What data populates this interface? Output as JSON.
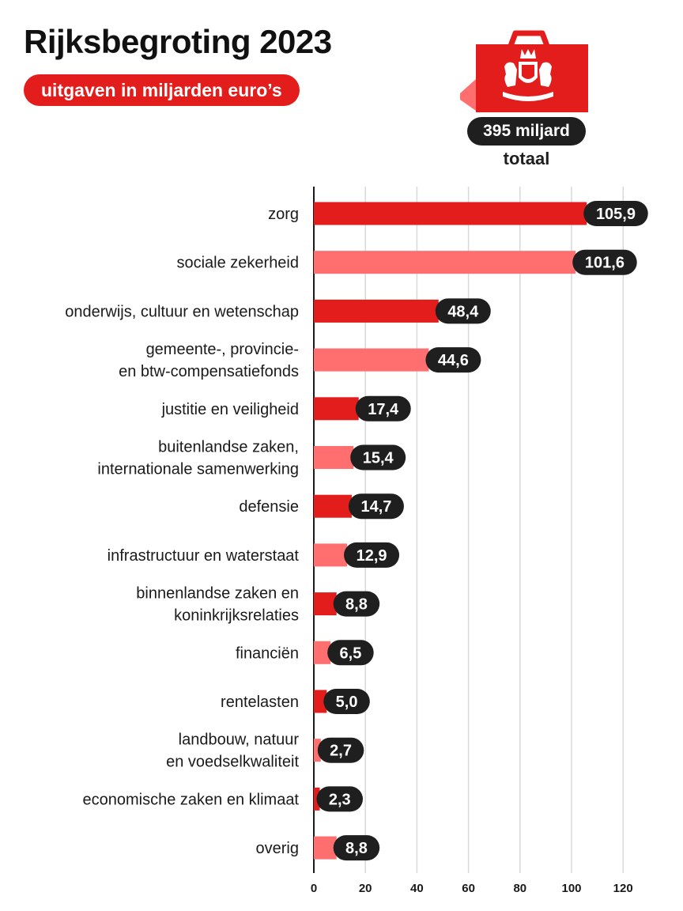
{
  "header": {
    "title": "Rijksbegroting 2023",
    "subtitle": "uitgaven in miljarden euro’s",
    "total_value": "395 miljard",
    "total_label": "totaal"
  },
  "colors": {
    "primary": "#e31c1c",
    "secondary": "#ff6f6f",
    "pill": "#1f1f1f",
    "grid": "#d9d9d9",
    "axis": "#1a1a1a"
  },
  "chart_data": {
    "type": "bar",
    "orientation": "horizontal",
    "title": "Rijksbegroting 2023",
    "subtitle": "uitgaven in miljarden euro’s",
    "xlim": [
      0,
      120
    ],
    "xticks": [
      0,
      20,
      40,
      60,
      80,
      100,
      120
    ],
    "grid": true,
    "categories": [
      [
        "zorg"
      ],
      [
        "sociale zekerheid"
      ],
      [
        "onderwijs, cultuur en wetenschap"
      ],
      [
        "gemeente-, provincie-",
        "en btw-compensatiefonds"
      ],
      [
        "justitie en veiligheid"
      ],
      [
        "buitenlandse zaken,",
        "internationale samenwerking"
      ],
      [
        "defensie"
      ],
      [
        "infrastructuur en waterstaat"
      ],
      [
        "binnenlandse zaken en",
        "koninkrijksrelaties"
      ],
      [
        "financiën"
      ],
      [
        "rentelasten"
      ],
      [
        "landbouw, natuur",
        "en voedselkwaliteit"
      ],
      [
        "economische zaken en klimaat"
      ],
      [
        "overig"
      ]
    ],
    "values": [
      105.9,
      101.6,
      48.4,
      44.6,
      17.4,
      15.4,
      14.7,
      12.9,
      8.8,
      6.5,
      5.0,
      2.7,
      2.3,
      8.8
    ],
    "value_labels": [
      "105,9",
      "101,6",
      "48,4",
      "44,6",
      "17,4",
      "15,4",
      "14,7",
      "12,9",
      "8,8",
      "6,5",
      "5,0",
      "2,7",
      "2,3",
      "8,8"
    ]
  }
}
